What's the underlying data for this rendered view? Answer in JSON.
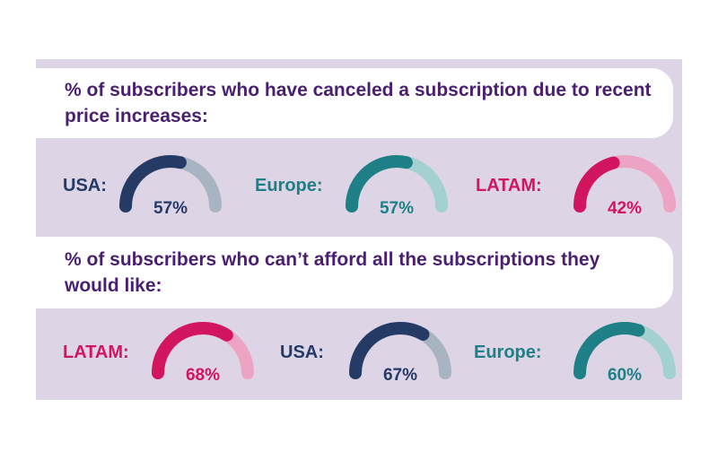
{
  "colors": {
    "navy": "#263a66",
    "navy_light": "#a9b4c2",
    "teal": "#1f7f86",
    "teal_light": "#a3d1d2",
    "magenta": "#d1155f",
    "magenta_light": "#eda3c3",
    "title": "#4a1f72"
  },
  "chart_data": [
    {
      "type": "gauge",
      "title": "% of subscribers who have canceled a subscription due to recent price increases:",
      "categories": [
        "USA:",
        "Europe:",
        "LATAM:"
      ],
      "values": [
        57,
        57,
        42
      ],
      "value_labels": [
        "57%",
        "57%",
        "42%"
      ],
      "colors": [
        "navy",
        "teal",
        "magenta"
      ]
    },
    {
      "type": "gauge",
      "title": "% of subscribers who can’t afford all the subscriptions they would like:",
      "categories": [
        "LATAM:",
        "USA:",
        "Europe:"
      ],
      "values": [
        68,
        67,
        60
      ],
      "value_labels": [
        "68%",
        "67%",
        "60%"
      ],
      "colors": [
        "magenta",
        "navy",
        "teal"
      ]
    }
  ]
}
